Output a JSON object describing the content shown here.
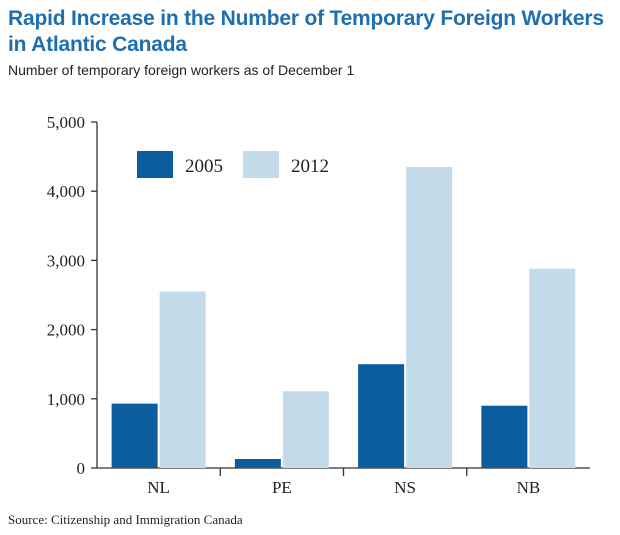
{
  "colors": {
    "title": "#1f6fb0",
    "series_2005": "#0b5d9e",
    "series_2012": "#c4dbea"
  },
  "chart_data": {
    "type": "bar",
    "title": "Rapid Increase in the Number of Temporary Foreign Workers in Atlantic Canada",
    "subtitle": "Number of temporary foreign workers as of December 1",
    "categories": [
      "NL",
      "PE",
      "NS",
      "NB"
    ],
    "series": [
      {
        "name": "2005",
        "values": [
          930,
          130,
          1500,
          900
        ]
      },
      {
        "name": "2012",
        "values": [
          2550,
          1110,
          4350,
          2880
        ]
      }
    ],
    "ylim": [
      0,
      5000
    ],
    "yticks": [
      0,
      1000,
      2000,
      3000,
      4000,
      5000
    ],
    "ytick_labels": [
      "0",
      "1,000",
      "2,000",
      "3,000",
      "4,000",
      "5,000"
    ],
    "xlabel": "",
    "ylabel": "",
    "grid": false,
    "legend": "top-left",
    "source": "Source: Citizenship and Immigration Canada"
  }
}
